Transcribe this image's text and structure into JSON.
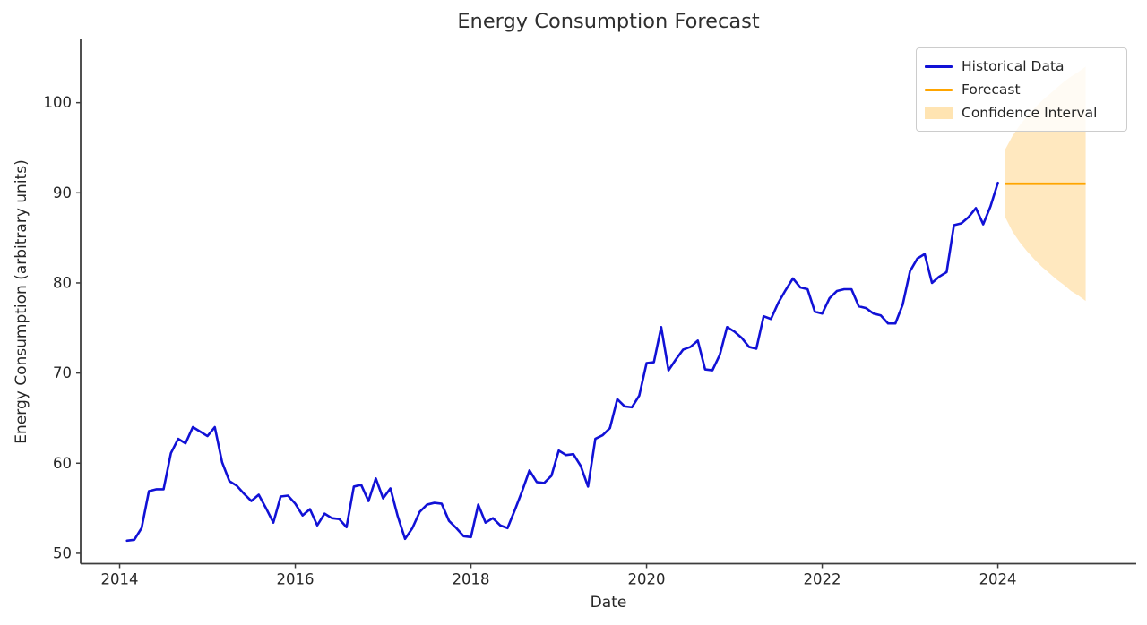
{
  "chart_data": {
    "type": "line",
    "title": "Energy Consumption Forecast",
    "xlabel": "Date",
    "ylabel": "Energy Consumption (arbitrary units)",
    "x_axis": {
      "note": "month_index 0 = first historical point (2014-01, month-end); ticks are year starts",
      "ticks": [
        {
          "label": "2014",
          "month_index": -1
        },
        {
          "label": "2016",
          "month_index": 23
        },
        {
          "label": "2018",
          "month_index": 47
        },
        {
          "label": "2020",
          "month_index": 71
        },
        {
          "label": "2022",
          "month_index": 95
        },
        {
          "label": "2024",
          "month_index": 119
        }
      ],
      "range_months": [
        -6.33,
        137.91
      ]
    },
    "y_axis": {
      "ticks": [
        50,
        60,
        70,
        80,
        90,
        100
      ],
      "range": [
        48.85,
        107.02
      ]
    },
    "series": [
      {
        "name": "Historical Data",
        "type": "line",
        "color": "#1111d6",
        "start_date": "2014-01",
        "frequency": "monthly",
        "start_month_index": 0,
        "values": [
          51.4,
          51.5,
          52.8,
          56.9,
          57.1,
          57.1,
          61.1,
          62.7,
          62.2,
          64.0,
          63.5,
          63.0,
          64.0,
          60.1,
          58.0,
          57.5,
          56.6,
          55.8,
          56.5,
          55.0,
          53.4,
          56.3,
          56.4,
          55.5,
          54.2,
          54.9,
          53.1,
          54.4,
          53.9,
          53.8,
          52.9,
          57.4,
          57.6,
          55.8,
          58.3,
          56.1,
          57.2,
          54.1,
          51.6,
          52.8,
          54.6,
          55.4,
          55.6,
          55.5,
          53.6,
          52.8,
          51.9,
          51.8,
          55.4,
          53.4,
          53.9,
          53.1,
          52.8,
          54.8,
          56.9,
          59.2,
          57.9,
          57.8,
          58.6,
          61.4,
          60.9,
          61.0,
          59.7,
          57.4,
          62.7,
          63.1,
          63.9,
          67.1,
          66.3,
          66.2,
          67.5,
          71.1,
          71.2,
          75.1,
          70.3,
          71.5,
          72.6,
          72.9,
          73.6,
          70.4,
          70.3,
          72.0,
          75.1,
          74.6,
          73.9,
          72.9,
          72.7,
          76.3,
          76.0,
          77.8,
          79.2,
          80.5,
          79.5,
          79.3,
          76.8,
          76.6,
          78.3,
          79.1,
          79.3,
          79.3,
          77.4,
          77.2,
          76.6,
          76.4,
          75.5,
          75.5,
          77.6,
          81.3,
          82.7,
          83.2,
          80.0,
          80.7,
          81.2,
          86.4,
          86.6,
          87.3,
          88.3,
          86.5,
          88.5,
          91.1
        ]
      },
      {
        "name": "Forecast",
        "type": "line",
        "color": "#ffa500",
        "start_date": "2024-01",
        "frequency": "monthly",
        "start_month_index": 120,
        "values": [
          91,
          91,
          91,
          91,
          91,
          91,
          91,
          91,
          91,
          91,
          91,
          91
        ]
      },
      {
        "name": "Confidence Interval",
        "type": "band",
        "fill_color": "rgba(255,165,0,0.25)",
        "start_month_index": 120,
        "lower": [
          87.3,
          85.7,
          84.5,
          83.5,
          82.6,
          81.8,
          81.1,
          80.4,
          79.8,
          79.1,
          78.6,
          78.0
        ],
        "upper": [
          94.8,
          96.3,
          97.5,
          98.5,
          99.4,
          100.2,
          100.9,
          101.6,
          102.3,
          102.9,
          103.4,
          104.0
        ]
      }
    ],
    "legend": {
      "position": "upper right",
      "entries": [
        {
          "label": "Historical Data",
          "swatch": "line",
          "color": "#1111d6"
        },
        {
          "label": "Forecast",
          "swatch": "line",
          "color": "#ffa500"
        },
        {
          "label": "Confidence Interval",
          "swatch": "patch",
          "color": "rgba(255,165,0,0.3)"
        }
      ]
    },
    "style": {
      "spine_color": "#3d3d3d",
      "tick_label_color": "#262626",
      "grid": false,
      "spines": "left and bottom only"
    }
  }
}
